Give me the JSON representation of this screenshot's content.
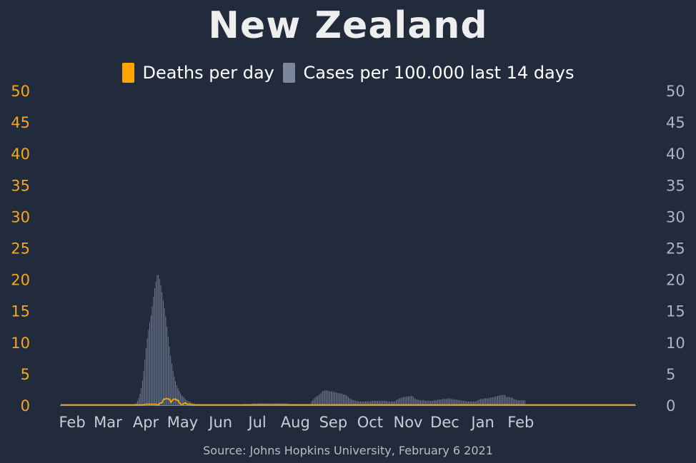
{
  "chart_data": {
    "type": "bar",
    "title": "New Zealand",
    "source": "Source: Johns Hopkins University, February 6 2021",
    "x_start_date": "2020-01-22",
    "x_ticks": [
      "Feb",
      "Mar",
      "Apr",
      "May",
      "Jun",
      "Jul",
      "Aug",
      "Sep",
      "Oct",
      "Nov",
      "Dec",
      "Jan",
      "Feb"
    ],
    "y_left": {
      "ticks": [
        0,
        5,
        10,
        15,
        20,
        25,
        30,
        35,
        40,
        45,
        50
      ],
      "ylim": [
        0,
        50
      ],
      "color": "#f5a623"
    },
    "y_right": {
      "ticks": [
        0,
        5,
        10,
        15,
        20,
        25,
        30,
        35,
        40,
        45,
        50
      ],
      "ylim": [
        0,
        50
      ],
      "color": "#aab4c8"
    },
    "grid": false,
    "legend_position": "top-center",
    "series": [
      {
        "name": "Deaths per day",
        "type": "line",
        "axis": "left",
        "color": "#ffa500",
        "values": [
          0,
          0,
          0,
          0,
          0,
          0,
          0,
          0,
          0,
          0,
          0,
          0,
          0,
          0,
          0,
          0,
          0,
          0,
          0,
          0,
          0,
          0,
          0,
          0,
          0,
          0,
          0,
          0,
          0,
          0,
          0,
          0,
          0,
          0,
          0,
          0,
          0,
          0,
          0,
          0,
          0,
          0,
          0,
          0,
          0,
          0,
          0,
          0,
          0,
          0,
          0,
          0,
          0,
          0,
          0,
          0,
          0,
          0,
          0,
          0,
          0,
          0,
          0,
          0,
          0,
          0,
          0,
          0,
          0,
          0.1,
          0.1,
          0.1,
          0.1,
          0.1,
          0.1,
          0.1,
          0.1,
          0.1,
          0.1,
          0,
          0,
          0.3,
          0.3,
          0.4,
          0.9,
          0.9,
          1.0,
          1.0,
          0.9,
          0.9,
          0.4,
          0.7,
          0.9,
          0.9,
          0.9,
          0.7,
          0.7,
          0.3,
          0.1,
          0.1,
          0.1,
          0.3,
          0.3,
          0.1,
          0.1,
          0.1,
          0.1,
          0,
          0,
          0,
          0,
          0,
          0,
          0,
          0,
          0,
          0,
          0,
          0,
          0,
          0,
          0,
          0,
          0,
          0,
          0,
          0,
          0,
          0,
          0,
          0,
          0,
          0,
          0,
          0,
          0,
          0,
          0,
          0,
          0,
          0,
          0,
          0,
          0,
          0,
          0,
          0,
          0,
          0,
          0,
          0,
          0,
          0,
          0,
          0,
          0,
          0,
          0,
          0,
          0,
          0,
          0,
          0,
          0,
          0,
          0,
          0,
          0,
          0,
          0,
          0,
          0,
          0,
          0,
          0,
          0,
          0,
          0,
          0,
          0,
          0,
          0,
          0,
          0,
          0,
          0,
          0,
          0,
          0,
          0,
          0,
          0,
          0,
          0,
          0,
          0,
          0,
          0,
          0,
          0,
          0,
          0,
          0,
          0,
          0,
          0,
          0,
          0,
          0,
          0,
          0,
          0,
          0,
          0,
          0,
          0,
          0,
          0,
          0,
          0,
          0,
          0,
          0,
          0,
          0,
          0,
          0,
          0,
          0,
          0,
          0,
          0,
          0,
          0,
          0,
          0,
          0,
          0,
          0,
          0,
          0,
          0,
          0,
          0,
          0,
          0,
          0,
          0,
          0,
          0,
          0,
          0,
          0,
          0,
          0,
          0,
          0,
          0,
          0,
          0,
          0,
          0,
          0,
          0,
          0,
          0,
          0,
          0,
          0,
          0,
          0,
          0,
          0,
          0,
          0,
          0,
          0,
          0,
          0,
          0,
          0,
          0,
          0,
          0,
          0,
          0,
          0,
          0,
          0,
          0,
          0,
          0,
          0,
          0,
          0,
          0,
          0,
          0,
          0,
          0,
          0,
          0,
          0,
          0,
          0,
          0,
          0,
          0,
          0,
          0,
          0,
          0,
          0,
          0,
          0,
          0,
          0,
          0,
          0,
          0,
          0,
          0,
          0,
          0,
          0,
          0,
          0,
          0,
          0,
          0,
          0,
          0,
          0,
          0,
          0,
          0,
          0,
          0,
          0,
          0,
          0,
          0,
          0,
          0,
          0,
          0,
          0,
          0,
          0,
          0,
          0,
          0,
          0,
          0,
          0,
          0,
          0,
          0,
          0,
          0,
          0,
          0,
          0,
          0,
          0,
          0,
          0,
          0,
          0,
          0,
          0,
          0,
          0,
          0,
          0,
          0,
          0,
          0,
          0,
          0,
          0,
          0,
          0,
          0,
          0,
          0,
          0,
          0,
          0,
          0,
          0,
          0,
          0,
          0,
          0,
          0,
          0,
          0,
          0,
          0,
          0,
          0,
          0,
          0,
          0,
          0,
          0,
          0,
          0,
          0,
          0,
          0,
          0,
          0,
          0,
          0,
          0,
          0,
          0,
          0,
          0,
          0,
          0,
          0,
          0,
          0,
          0,
          0,
          0,
          0,
          0,
          0,
          0,
          0,
          0,
          0,
          0,
          0,
          0,
          0,
          0,
          0,
          0,
          0,
          0,
          0,
          0,
          0,
          0,
          0,
          0,
          0,
          0,
          0,
          0,
          0,
          0,
          0,
          0,
          0,
          0,
          0,
          0,
          0,
          0,
          0,
          0,
          0,
          0,
          0
        ]
      },
      {
        "name": "Cases per 100.000 last 14 days",
        "type": "bar",
        "axis": "right",
        "color": "#7c869d",
        "values": [
          0,
          0,
          0,
          0,
          0,
          0,
          0,
          0,
          0,
          0,
          0,
          0,
          0,
          0,
          0,
          0,
          0,
          0,
          0,
          0,
          0,
          0,
          0,
          0,
          0,
          0,
          0,
          0,
          0,
          0,
          0,
          0,
          0,
          0,
          0,
          0,
          0,
          0,
          0,
          0,
          0,
          0,
          0,
          0,
          0,
          0,
          0,
          0,
          0,
          0,
          0,
          0,
          0,
          0,
          0,
          0,
          0,
          0,
          0,
          0,
          0.1,
          0.2,
          0.4,
          0.7,
          1.1,
          1.8,
          2.7,
          3.9,
          5.4,
          7.2,
          9.1,
          10.6,
          12.0,
          13.2,
          14.3,
          15.7,
          17.2,
          18.6,
          19.6,
          20.7,
          20.7,
          20.1,
          19.1,
          18.0,
          16.7,
          15.4,
          14.1,
          12.5,
          10.9,
          9.3,
          7.8,
          6.6,
          5.5,
          4.6,
          3.8,
          3.2,
          2.7,
          2.3,
          1.9,
          1.6,
          1.4,
          1.2,
          1.0,
          0.8,
          0.7,
          0.6,
          0.5,
          0.4,
          0.3,
          0.3,
          0.2,
          0.2,
          0.2,
          0.1,
          0.1,
          0.1,
          0.1,
          0.1,
          0.1,
          0.1,
          0.1,
          0.1,
          0.1,
          0.1,
          0.1,
          0.1,
          0.1,
          0.1,
          0.1,
          0.1,
          0.1,
          0.1,
          0.1,
          0.1,
          0.1,
          0.1,
          0.1,
          0.1,
          0.1,
          0.1,
          0.1,
          0.1,
          0.1,
          0.1,
          0.1,
          0.1,
          0.1,
          0.1,
          0.1,
          0.1,
          0.2,
          0.2,
          0.2,
          0.2,
          0.2,
          0.2,
          0.2,
          0.3,
          0.3,
          0.3,
          0.3,
          0.3,
          0.3,
          0.3,
          0.3,
          0.3,
          0.3,
          0.3,
          0.3,
          0.3,
          0.3,
          0.3,
          0.3,
          0.3,
          0.3,
          0.3,
          0.3,
          0.3,
          0.3,
          0.3,
          0.3,
          0.3,
          0.3,
          0.3,
          0.3,
          0.3,
          0.2,
          0.2,
          0.2,
          0.2,
          0.2,
          0.2,
          0.2,
          0.2,
          0.2,
          0.2,
          0.2,
          0.2,
          0.2,
          0.2,
          0.2,
          0.2,
          0.2,
          0.2,
          0.2,
          0.6,
          0.8,
          1.0,
          1.2,
          1.4,
          1.5,
          1.6,
          1.8,
          2.0,
          2.2,
          2.3,
          2.4,
          2.4,
          2.3,
          2.3,
          2.2,
          2.2,
          2.2,
          2.1,
          2.1,
          2.0,
          2.0,
          1.9,
          1.9,
          1.9,
          1.8,
          1.7,
          1.7,
          1.6,
          1.5,
          1.3,
          1.1,
          1.0,
          0.9,
          0.8,
          0.8,
          0.7,
          0.7,
          0.6,
          0.6,
          0.6,
          0.6,
          0.6,
          0.6,
          0.6,
          0.6,
          0.6,
          0.6,
          0.6,
          0.7,
          0.7,
          0.7,
          0.7,
          0.7,
          0.7,
          0.7,
          0.7,
          0.7,
          0.7,
          0.7,
          0.7,
          0.7,
          0.6,
          0.6,
          0.6,
          0.6,
          0.6,
          0.6,
          0.6,
          0.8,
          0.9,
          1.0,
          1.1,
          1.2,
          1.2,
          1.3,
          1.3,
          1.3,
          1.4,
          1.4,
          1.4,
          1.5,
          1.5,
          1.3,
          1.1,
          1.0,
          0.9,
          0.9,
          0.8,
          0.8,
          0.8,
          0.8,
          0.8,
          0.7,
          0.7,
          0.7,
          0.7,
          0.7,
          0.7,
          0.7,
          0.8,
          0.8,
          0.8,
          0.9,
          0.9,
          0.9,
          0.9,
          1.0,
          1.0,
          1.0,
          1.0,
          1.1,
          1.1,
          1.0,
          1.0,
          1.0,
          0.9,
          0.9,
          0.9,
          0.9,
          0.8,
          0.8,
          0.8,
          0.7,
          0.7,
          0.7,
          0.6,
          0.6,
          0.6,
          0.6,
          0.6,
          0.6,
          0.6,
          0.6,
          0.6,
          0.7,
          0.8,
          0.9,
          1.0,
          1.0,
          1.0,
          1.1,
          1.1,
          1.1,
          1.1,
          1.2,
          1.2,
          1.2,
          1.3,
          1.3,
          1.4,
          1.4,
          1.5,
          1.5,
          1.6,
          1.6,
          1.6,
          1.7,
          1.6,
          1.3,
          1.3,
          1.3,
          1.3,
          1.2,
          1.2,
          1.0,
          0.9,
          0.9,
          0.8,
          0.8,
          0.8,
          0.8,
          0.8,
          0.8,
          0.8
        ]
      }
    ]
  }
}
